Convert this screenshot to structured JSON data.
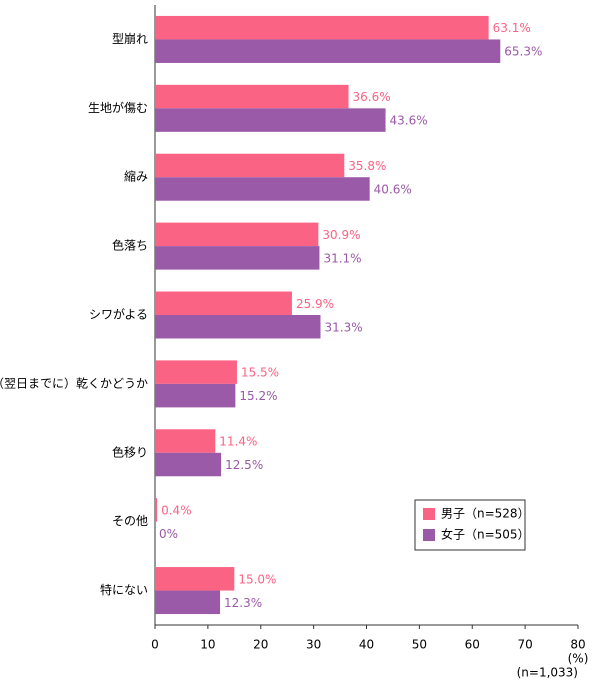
{
  "chart_data": {
    "type": "bar",
    "orientation": "horizontal",
    "categories": [
      "型崩れ",
      "生地が傷む",
      "縮み",
      "色落ち",
      "シワがよる",
      "（翌日までに）乾くかどうか",
      "色移り",
      "その他",
      "特にない"
    ],
    "series": [
      {
        "name": "男子（n=528）",
        "color": "#fb6384",
        "values": [
          63.1,
          36.6,
          35.8,
          30.9,
          25.9,
          15.5,
          11.4,
          0.4,
          15.0
        ],
        "value_labels": [
          "63.1%",
          "36.6%",
          "35.8%",
          "30.9%",
          "25.9%",
          "15.5%",
          "11.4%",
          "0.4%",
          "15.0%"
        ]
      },
      {
        "name": "女子（n=505）",
        "color": "#9a5aa7",
        "values": [
          65.3,
          43.6,
          40.6,
          31.1,
          31.3,
          15.2,
          12.5,
          0,
          12.3
        ],
        "value_labels": [
          "65.3%",
          "43.6%",
          "40.6%",
          "31.1%",
          "31.3%",
          "15.2%",
          "12.5%",
          "0%",
          "12.3%"
        ]
      }
    ],
    "xlim": [
      0,
      80
    ],
    "xticks": [
      0,
      10,
      20,
      30,
      40,
      50,
      60,
      70,
      80
    ],
    "xlabel": "(%)",
    "note": "(n=1,033)",
    "legend": "lower-right",
    "grid": false
  }
}
